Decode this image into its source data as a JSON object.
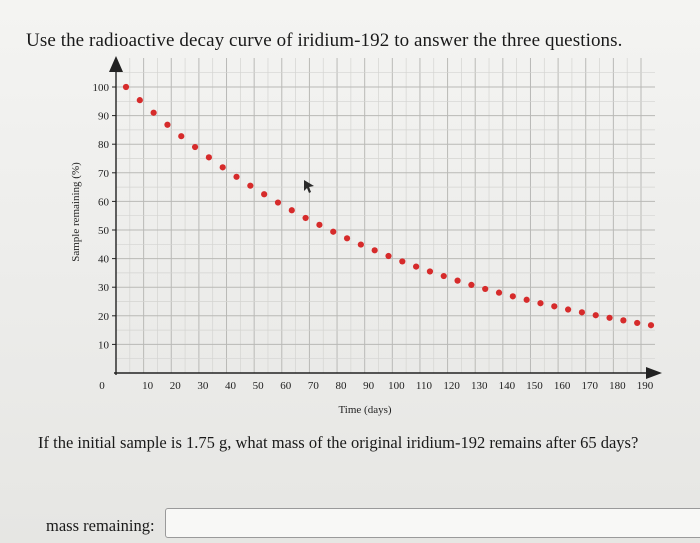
{
  "header": {
    "title": "Use the radioactive decay curve of iridium-192 to answer the three questions."
  },
  "question": {
    "text": "If the initial sample is 1.75 g, what mass of the original iridium-192 remains after 65 days?"
  },
  "answer": {
    "label": "mass remaining:",
    "value": "",
    "placeholder": ""
  },
  "chart_data": {
    "type": "scatter",
    "title": "",
    "xlabel": "Time (days)",
    "ylabel": "Sample remaining (%)",
    "xlim": [
      0,
      190
    ],
    "ylim": [
      0,
      100
    ],
    "x_ticks": [
      0,
      10,
      20,
      30,
      40,
      50,
      60,
      70,
      80,
      90,
      100,
      110,
      120,
      130,
      140,
      150,
      160,
      170,
      180,
      190
    ],
    "y_ticks": [
      10,
      20,
      30,
      40,
      50,
      60,
      70,
      80,
      90,
      100
    ],
    "grid": true,
    "point_color": "#d62b2b",
    "series": [
      {
        "x": [
          0,
          5,
          10,
          15,
          20,
          25,
          30,
          35,
          40,
          45,
          50,
          55,
          60,
          65,
          70,
          75,
          80,
          85,
          90,
          95,
          100,
          105,
          110,
          115,
          120,
          125,
          130,
          135,
          140,
          145,
          150,
          155,
          160,
          165,
          170,
          175,
          180,
          185,
          190
        ],
        "y": [
          100,
          95.4,
          91.0,
          86.8,
          82.8,
          79.0,
          75.4,
          71.9,
          68.6,
          65.5,
          62.5,
          59.6,
          56.9,
          54.2,
          51.8,
          49.4,
          47.1,
          44.9,
          42.9,
          40.9,
          39.0,
          37.2,
          35.5,
          33.9,
          32.3,
          30.8,
          29.4,
          28.1,
          26.8,
          25.6,
          24.4,
          23.3,
          22.2,
          21.2,
          20.2,
          19.3,
          18.4,
          17.5,
          16.7
        ]
      }
    ]
  }
}
